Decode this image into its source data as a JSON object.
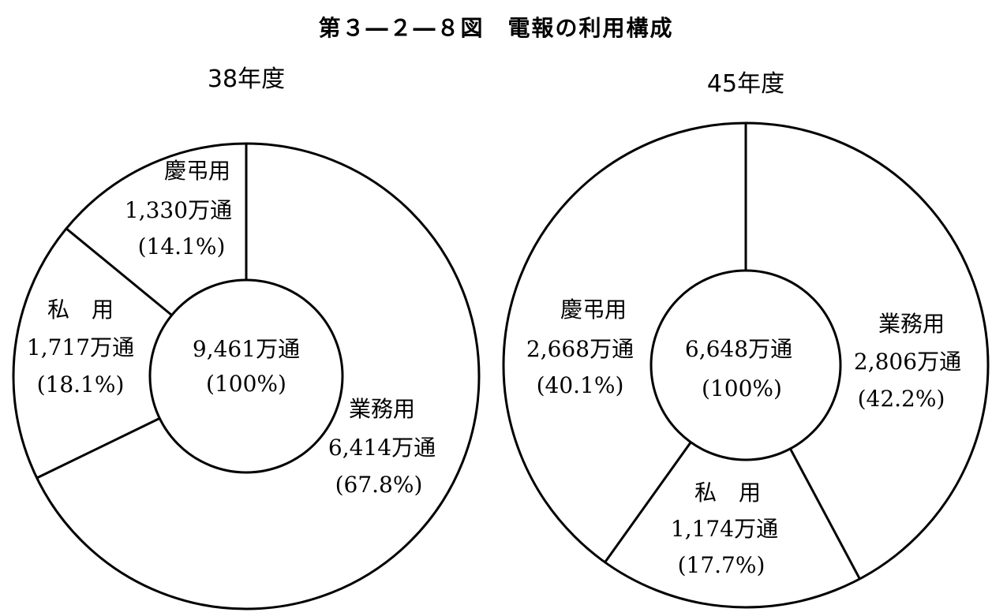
{
  "figure_title": "第３―２―８図　電報の利用構成",
  "chart_data": [
    {
      "type": "pie",
      "style": "donut",
      "year_label": "38年度",
      "total_label": "9,461万通",
      "total_percent": "(100%)",
      "slices": [
        {
          "name": "業務用",
          "count_label": "6,414万通",
          "percent_label": "(67.8%)",
          "value": 6414,
          "percent": 67.8
        },
        {
          "name": "私　用",
          "count_label": "1,717万通",
          "percent_label": "(18.1%)",
          "value": 1717,
          "percent": 18.1
        },
        {
          "name": "慶弔用",
          "count_label": "1,330万通",
          "percent_label": "(14.1%)",
          "value": 1330,
          "percent": 14.1
        }
      ]
    },
    {
      "type": "pie",
      "style": "donut",
      "year_label": "45年度",
      "total_label": "6,648万通",
      "total_percent": "(100%)",
      "slices": [
        {
          "name": "業務用",
          "count_label": "2,806万通",
          "percent_label": "(42.2%)",
          "value": 2806,
          "percent": 42.2
        },
        {
          "name": "私　用",
          "count_label": "1,174万通",
          "percent_label": "(17.7%)",
          "value": 1174,
          "percent": 17.7
        },
        {
          "name": "慶弔用",
          "count_label": "2,668万通",
          "percent_label": "(40.1%)",
          "value": 2668,
          "percent": 40.1
        }
      ]
    }
  ]
}
